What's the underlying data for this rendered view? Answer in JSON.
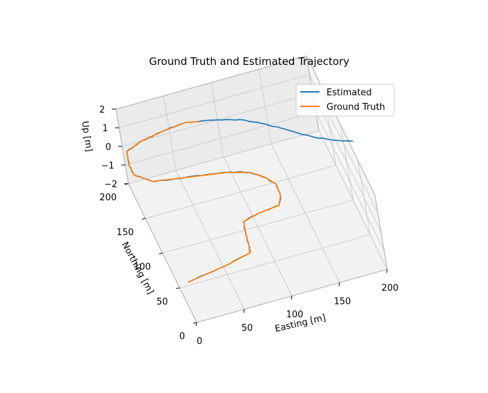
{
  "chart_data": {
    "type": "line",
    "projection": "3d",
    "title": "Ground Truth and Estimated Trajectory",
    "xlabel": "Easting [m]",
    "ylabel": "Northing [m]",
    "zlabel": "Up [m]",
    "xlim": [
      0,
      200
    ],
    "ylim": [
      0,
      200
    ],
    "zlim": [
      -2,
      2
    ],
    "xticks": [
      "0",
      "50",
      "100",
      "150",
      "200"
    ],
    "yticks": [
      "0",
      "50",
      "100",
      "150",
      "200"
    ],
    "zticks": [
      "2",
      "1",
      "0",
      "−1",
      "−2"
    ],
    "legend": "top-right",
    "grid": true,
    "series": [
      {
        "name": "Estimated",
        "color": "#1f77b4",
        "points": [
          [
            0,
            5,
            0
          ],
          [
            40,
            12,
            0
          ],
          [
            70,
            20,
            0
          ],
          [
            72,
            30,
            0
          ],
          [
            75,
            48,
            0
          ],
          [
            78,
            62,
            0
          ],
          [
            95,
            67,
            0
          ],
          [
            118,
            70,
            0
          ],
          [
            124,
            82,
            0
          ],
          [
            125,
            98,
            0
          ],
          [
            118,
            110,
            0
          ],
          [
            106,
            122,
            0
          ],
          [
            85,
            130,
            0
          ],
          [
            60,
            135,
            0
          ],
          [
            35,
            140,
            0
          ],
          [
            12,
            145,
            0
          ],
          [
            -2,
            160,
            0
          ],
          [
            -2,
            175,
            0
          ],
          [
            2,
            192,
            0
          ],
          [
            20,
            200,
            0
          ],
          [
            45,
            205,
            0
          ],
          [
            70,
            208,
            0
          ],
          [
            100,
            200,
            0
          ],
          [
            125,
            190,
            0
          ],
          [
            145,
            175,
            0
          ],
          [
            165,
            158,
            0
          ],
          [
            180,
            145,
            0
          ],
          [
            195,
            135,
            0
          ],
          [
            215,
            125,
            0
          ]
        ]
      },
      {
        "name": "Ground Truth",
        "color": "#ff7f0e",
        "points": [
          [
            0,
            5,
            0
          ],
          [
            40,
            12,
            0
          ],
          [
            70,
            20,
            0
          ],
          [
            72,
            30,
            0
          ],
          [
            75,
            48,
            0
          ],
          [
            78,
            62,
            0
          ],
          [
            95,
            67,
            0
          ],
          [
            118,
            70,
            0
          ],
          [
            124,
            82,
            0
          ],
          [
            125,
            98,
            0
          ],
          [
            118,
            110,
            0
          ],
          [
            106,
            122,
            0
          ],
          [
            85,
            130,
            0
          ],
          [
            60,
            135,
            0
          ],
          [
            35,
            140,
            0
          ],
          [
            12,
            145,
            0
          ],
          [
            -2,
            160,
            0
          ],
          [
            -2,
            175,
            0
          ],
          [
            2,
            192,
            0
          ],
          [
            20,
            200,
            0
          ],
          [
            45,
            205,
            0
          ],
          [
            70,
            208,
            0
          ],
          [
            82,
            204,
            0
          ]
        ]
      }
    ]
  }
}
